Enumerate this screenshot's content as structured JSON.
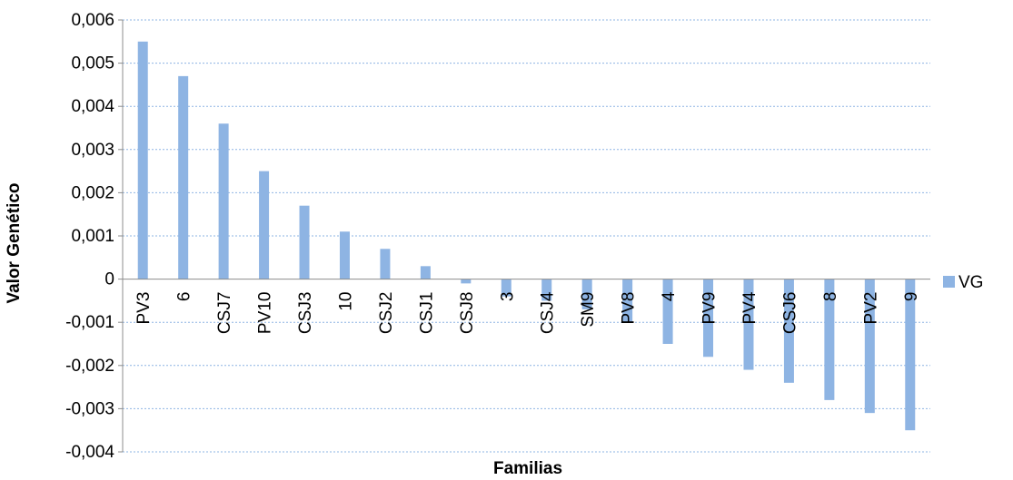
{
  "chart_data": {
    "type": "bar",
    "xlabel": "Familias",
    "ylabel": "Valor Genético",
    "ylim": [
      -0.004,
      0.006
    ],
    "yticks": [
      -0.004,
      -0.003,
      -0.002,
      -0.001,
      0,
      0.001,
      0.002,
      0.003,
      0.004,
      0.005,
      0.006
    ],
    "ytick_labels": [
      "-0,004",
      "-0,003",
      "-0,002",
      "-0,001",
      "0",
      "0,001",
      "0,002",
      "0,003",
      "0,004",
      "0,005",
      "0,006"
    ],
    "grid": true,
    "legend_position": "right",
    "categories": [
      "PV3",
      "6",
      "CSJ7",
      "PV10",
      "CSJ3",
      "10",
      "CSJ2",
      "CSJ1",
      "CSJ8",
      "3",
      "CSJ4",
      "SM9",
      "PV8",
      "4",
      "PV9",
      "PV4",
      "CSJ6",
      "8",
      "PV2",
      "9"
    ],
    "series": [
      {
        "name": "VG",
        "color": "#8EB4E3",
        "values": [
          0.0055,
          0.0047,
          0.0036,
          0.0025,
          0.0017,
          0.0011,
          0.0007,
          0.0003,
          -0.0001,
          -0.0004,
          -0.0005,
          -0.0007,
          -0.001,
          -0.0015,
          -0.0018,
          -0.0021,
          -0.0024,
          -0.0028,
          -0.0031,
          -0.0035
        ]
      }
    ]
  }
}
